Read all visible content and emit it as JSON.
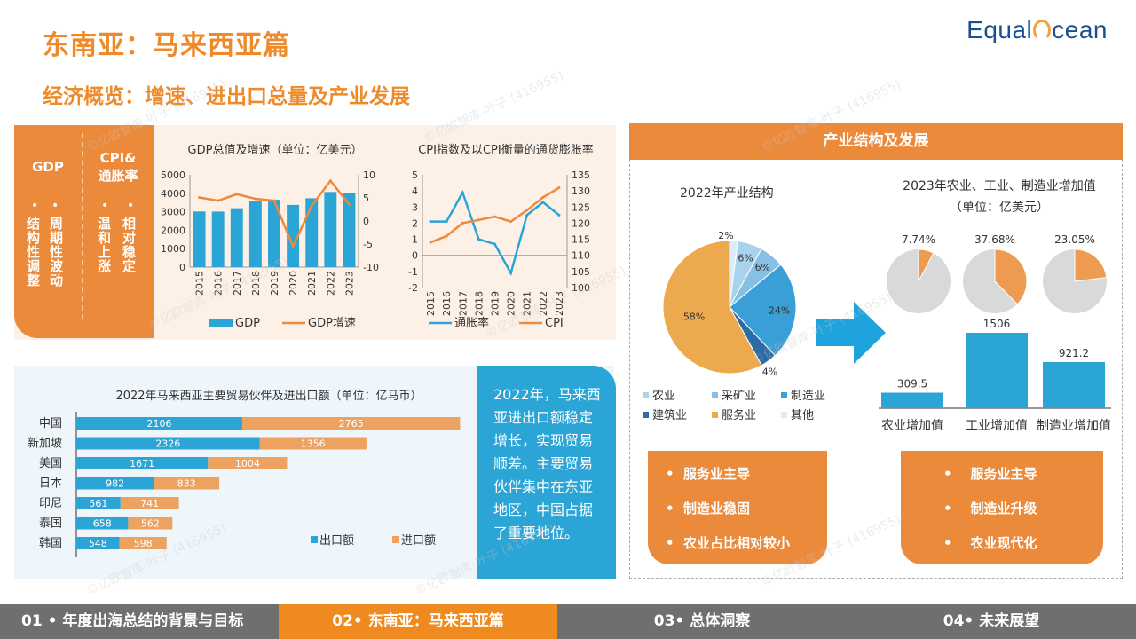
{
  "header": {
    "title": "东南亚：马来西亚篇",
    "subtitle": "经济概览：增速、进出口总量及产业发展",
    "logo_text_a": "Equal",
    "logo_text_b": "cean"
  },
  "left_panel": {
    "gdp_head": "GDP",
    "gdp_col1": "结构性调整",
    "gdp_col2": "周期性波动",
    "cpi_head_1": "CPI&",
    "cpi_head_2": "通胀率",
    "cpi_col1": "温和上涨",
    "cpi_col2": "相对稳定",
    "dot": "•"
  },
  "trade_text": "2022年，马来西亚进出口额稳定增长，实现贸易顺差。主要贸易伙伴集中在东亚地区，中国占据了重要地位。",
  "industry": {
    "header": "产业结构及发展",
    "pie_title": "2022年产业结构",
    "bar_title_1": "2023年农业、工业、制造业增加值",
    "bar_title_2": "（单位：亿美元）",
    "left_bullets": [
      "服务业主导",
      "制造业稳固",
      "农业占比相对较小"
    ],
    "right_bullets": [
      "服务业主导",
      "制造业升级",
      "农业现代化"
    ],
    "bullet_dot": "•"
  },
  "footer": {
    "items": [
      "01 • 年度出海总结的背景与目标",
      "02• 东南亚：马来西亚篇",
      "03• 总体洞察",
      "04• 未来展望"
    ]
  },
  "watermark": "©亿欧智库-叶子 (416955)",
  "colors": {
    "orange": "#ec8a3b",
    "blue": "#2aa5d6",
    "grey": "#6f6f6f"
  },
  "chart_data": [
    {
      "id": "gdp",
      "type": "bar",
      "title": "GDP总值及增速（单位：亿美元）",
      "categories": [
        "2015",
        "2016",
        "2017",
        "2018",
        "2019",
        "2020",
        "2021",
        "2022",
        "2023"
      ],
      "series": [
        {
          "name": "GDP",
          "type": "bar",
          "axis": "left",
          "values": [
            3014,
            3010,
            3190,
            3587,
            3650,
            3370,
            3730,
            4070,
            4000
          ]
        },
        {
          "name": "GDP增速",
          "type": "line",
          "axis": "right",
          "values": [
            5.1,
            4.4,
            5.8,
            4.8,
            4.4,
            -5.5,
            3.3,
            8.7,
            3.6
          ]
        }
      ],
      "ylim_left": [
        0,
        5000
      ],
      "ylim_right": [
        -10,
        10
      ],
      "yticks_left": [
        "0",
        "1000",
        "2000",
        "3000",
        "4000",
        "5000"
      ],
      "yticks_right": [
        "-10",
        "-5",
        "0",
        "5",
        "10"
      ]
    },
    {
      "id": "cpi",
      "type": "line",
      "title": "CPI指数及以CPI衡量的通货膨胀率",
      "categories": [
        "2015",
        "2016",
        "2017",
        "2018",
        "2019",
        "2020",
        "2021",
        "2022",
        "2023"
      ],
      "series": [
        {
          "name": "通胀率",
          "axis": "left",
          "values": [
            2.1,
            2.1,
            3.9,
            1.0,
            0.7,
            -1.1,
            2.5,
            3.3,
            2.5
          ]
        },
        {
          "name": "CPI",
          "axis": "right",
          "values": [
            114,
            116,
            120,
            121,
            122,
            120.5,
            124,
            128,
            131
          ]
        }
      ],
      "ylim_left": [
        -2,
        5
      ],
      "ylim_right": [
        100,
        135
      ],
      "yticks_left": [
        "-2",
        "-1",
        "0",
        "1",
        "2",
        "3",
        "4",
        "5"
      ],
      "yticks_right": [
        "100",
        "105",
        "110",
        "115",
        "120",
        "125",
        "130",
        "135"
      ]
    },
    {
      "id": "trade",
      "type": "bar",
      "stacked": true,
      "orientation": "horizontal",
      "title": "2022年马来西亚主要贸易伙伴及进出口额（单位：亿马币）",
      "categories": [
        "中国",
        "新加坡",
        "美国",
        "日本",
        "印尼",
        "泰国",
        "韩国"
      ],
      "series": [
        {
          "name": "出口额",
          "values": [
            2106,
            2326,
            1671,
            982,
            561,
            658,
            548
          ]
        },
        {
          "name": "进口额",
          "values": [
            2765,
            1356,
            1004,
            833,
            741,
            562,
            598
          ]
        }
      ]
    },
    {
      "id": "structure",
      "type": "pie",
      "title": "2022年产业结构",
      "labels": [
        "农业",
        "采矿业",
        "制造业",
        "建筑业",
        "服务业",
        "其他"
      ],
      "values": [
        6,
        6,
        24,
        4,
        58,
        2
      ],
      "value_labels": [
        "6%",
        "6%",
        "24%",
        "4%",
        "58%",
        "2%"
      ],
      "colors": [
        "#a9d3ec",
        "#86c1e5",
        "#3a9fd6",
        "#2e6aa3",
        "#eda94e",
        "#d9eef8"
      ]
    },
    {
      "id": "shares",
      "type": "pie",
      "labels": [
        "7.74%",
        "37.68%",
        "23.05%"
      ],
      "values": [
        7.74,
        37.68,
        23.05
      ]
    },
    {
      "id": "value_added",
      "type": "bar",
      "categories": [
        "农业增加值",
        "工业增加值",
        "制造业增加值"
      ],
      "values": [
        309.5,
        1506,
        921.2
      ],
      "value_labels": [
        "309.5",
        "1506",
        "921.2"
      ]
    }
  ]
}
